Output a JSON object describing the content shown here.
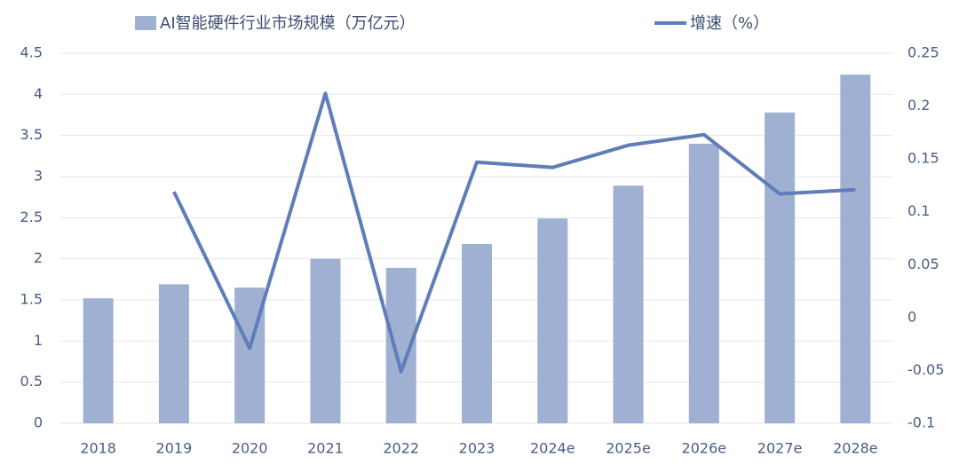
{
  "chart_data": {
    "type": "bar",
    "categories": [
      "2018",
      "2019",
      "2020",
      "2021",
      "2022",
      "2023",
      "2024e",
      "2025e",
      "2026e",
      "2027e",
      "2028e"
    ],
    "series": [
      {
        "name": "AI智能硬件行业市场规模（万亿元）",
        "type": "bar",
        "color": "#9fb0d2",
        "values": [
          1.52,
          1.69,
          1.65,
          2.0,
          1.89,
          2.18,
          2.49,
          2.89,
          3.4,
          3.78,
          4.24
        ]
      },
      {
        "name": "增速（%）",
        "type": "line",
        "axis": "y2",
        "color": "#5f7db9",
        "values": [
          null,
          0.119,
          -0.029,
          0.212,
          -0.051,
          0.147,
          0.142,
          0.163,
          0.173,
          0.117,
          0.121
        ]
      }
    ],
    "ylim": [
      0,
      4.5
    ],
    "yticks": [
      0,
      0.5,
      1,
      1.5,
      2,
      2.5,
      3,
      3.5,
      4,
      4.5
    ],
    "y2lim": [
      -0.1,
      0.25
    ],
    "y2ticks": [
      -0.1,
      -0.05,
      0,
      0.05,
      0.1,
      0.15,
      0.2,
      0.25
    ],
    "grid": true,
    "legend": "top"
  }
}
